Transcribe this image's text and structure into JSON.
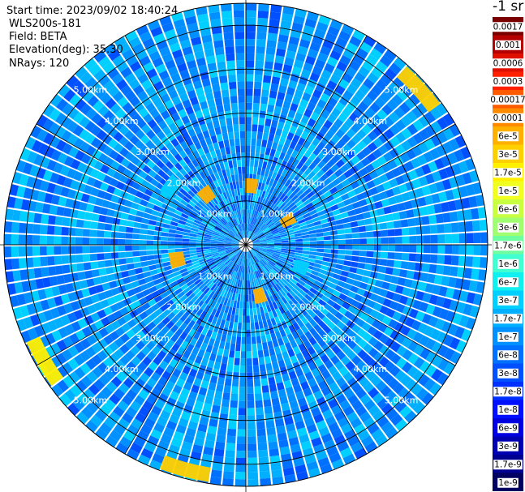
{
  "header": {
    "start_time": "Start time: 2023/09/02 18:40:24",
    "site": "WLS200s-181",
    "field": "Field: BETA",
    "elevation": "Elevation(deg): 35.30",
    "nrays": "NRays: 120"
  },
  "colorbar": {
    "title": "-1 sr",
    "labels": [
      "0.0017",
      "0.001",
      "0.0006",
      "0.0003",
      "0.00017",
      "0.0001",
      "6e-5",
      "3e-5",
      "1.7e-5",
      "1e-5",
      "6e-6",
      "3e-6",
      "1.7e-6",
      "1e-6",
      "6e-7",
      "3e-7",
      "1.7e-7",
      "1e-7",
      "6e-8",
      "3e-8",
      "1.7e-8",
      "1e-8",
      "6e-9",
      "3e-9",
      "1.7e-9",
      "1e-9"
    ],
    "colors": [
      "#7a0000",
      "#b40000",
      "#e01000",
      "#ff2000",
      "#ff5a00",
      "#ff8a00",
      "#ffb000",
      "#ffd000",
      "#fff000",
      "#f0ff20",
      "#c8ff40",
      "#a0ff70",
      "#70ffa0",
      "#40ffd0",
      "#10f0f0",
      "#00d0ff",
      "#00b0ff",
      "#0090ff",
      "#0070ff",
      "#0050ff",
      "#0030ff",
      "#0010ff",
      "#0000e0",
      "#0000b0",
      "#000090",
      "#000060"
    ]
  },
  "chart_data": {
    "type": "heatmap",
    "projection": "polar",
    "field": "BETA",
    "n_rays": 120,
    "max_range_km": 5.5,
    "range_ring_labels": [
      "1.00km",
      "2.00km",
      "3.00km",
      "4.00km",
      "5.00km"
    ],
    "range_rings_km": [
      1,
      2,
      3,
      4,
      5
    ],
    "spoke_angles_deg": [
      0,
      30,
      60,
      90,
      120,
      150,
      180,
      210,
      240,
      270,
      300,
      330
    ],
    "background_level": "1e-7",
    "features": [
      {
        "range_km": 2.15,
        "azimuth_deg": 308,
        "level": "1e-4"
      },
      {
        "range_km": 1.45,
        "azimuth_deg": 322,
        "level": "6e-5"
      },
      {
        "range_km": 1.35,
        "azimuth_deg": 5,
        "level": "6e-5"
      },
      {
        "range_km": 1.1,
        "azimuth_deg": 60,
        "level": "6e-5"
      },
      {
        "range_km": 1.35,
        "azimuth_deg": 112,
        "level": "1e-4"
      },
      {
        "range_km": 1.2,
        "azimuth_deg": 165,
        "level": "6e-5"
      },
      {
        "range_km": 1.6,
        "azimuth_deg": 258,
        "level": "6e-5"
      },
      {
        "range_km": 5.3,
        "azimuth_deg": 195,
        "level": "3e-5"
      },
      {
        "range_km": 5.3,
        "azimuth_deg": 48,
        "level": "3e-5"
      },
      {
        "range_km": 5.3,
        "azimuth_deg": 240,
        "level": "1.7e-5"
      }
    ]
  }
}
